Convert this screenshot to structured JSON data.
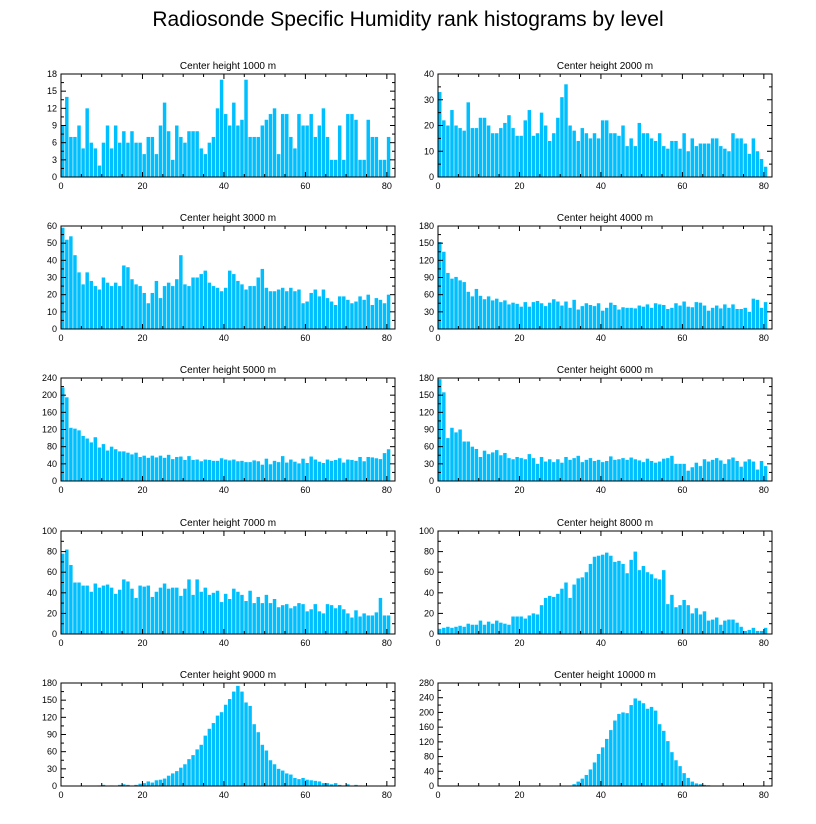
{
  "title": "Radiosonde Specific Humidity rank histograms by level",
  "bar_color": "#00bfff",
  "chart_data": [
    {
      "type": "bar",
      "title": "Center height 1000 m",
      "xlim": [
        0,
        82
      ],
      "ylim": [
        0,
        18
      ],
      "xticks": [
        0,
        20,
        40,
        60,
        80
      ],
      "yticks": [
        0,
        3,
        6,
        9,
        12,
        15,
        18
      ],
      "values": [
        9,
        14,
        7,
        7,
        9,
        5,
        12,
        6,
        5,
        2,
        6,
        9,
        5,
        9,
        6,
        8,
        6,
        8,
        6,
        6,
        4,
        7,
        7,
        4,
        9,
        13,
        8,
        3,
        9,
        7,
        6,
        8,
        8,
        8,
        5,
        4,
        6,
        7,
        12,
        17,
        11,
        9,
        13,
        9,
        10,
        17,
        7,
        7,
        7,
        9,
        10,
        11,
        12,
        4,
        11,
        11,
        7,
        5,
        11,
        9,
        9,
        11,
        7,
        9,
        12,
        7,
        3,
        3,
        9,
        3,
        11,
        11,
        10,
        3,
        3,
        10,
        7,
        7,
        3,
        3,
        7
      ]
    },
    {
      "type": "bar",
      "title": "Center height 2000 m",
      "xlim": [
        0,
        82
      ],
      "ylim": [
        0,
        40
      ],
      "xticks": [
        0,
        20,
        40,
        60,
        80
      ],
      "yticks": [
        0,
        10,
        20,
        30,
        40
      ],
      "values": [
        33,
        22,
        20,
        26,
        20,
        19,
        18,
        29,
        19,
        19,
        23,
        23,
        20,
        17,
        17,
        19,
        21,
        24,
        19,
        16,
        16,
        22,
        26,
        16,
        17,
        25,
        20,
        14,
        17,
        23,
        31,
        36,
        20,
        18,
        14,
        19,
        17,
        15,
        17,
        15,
        22,
        22,
        17,
        17,
        16,
        20,
        12,
        15,
        12,
        21,
        17,
        17,
        15,
        14,
        17,
        12,
        11,
        14,
        14,
        11,
        17,
        10,
        15,
        12,
        13,
        13,
        13,
        15,
        15,
        12,
        11,
        10,
        17,
        15,
        15,
        13,
        9,
        15,
        10,
        7,
        4
      ]
    },
    {
      "type": "bar",
      "title": "Center height 3000 m",
      "xlim": [
        0,
        82
      ],
      "ylim": [
        0,
        60
      ],
      "xticks": [
        0,
        20,
        40,
        60,
        80
      ],
      "yticks": [
        0,
        10,
        20,
        30,
        40,
        50,
        60
      ],
      "values": [
        59,
        52,
        54,
        43,
        33,
        26,
        33,
        28,
        25,
        23,
        30,
        27,
        25,
        27,
        25,
        37,
        36,
        29,
        26,
        25,
        21,
        15,
        21,
        28,
        18,
        25,
        27,
        25,
        29,
        43,
        26,
        25,
        30,
        30,
        32,
        34,
        27,
        25,
        24,
        22,
        24,
        34,
        32,
        28,
        26,
        23,
        25,
        25,
        30,
        35,
        24,
        22,
        22,
        23,
        24,
        22,
        24,
        22,
        23,
        15,
        16,
        21,
        23,
        19,
        23,
        18,
        16,
        14,
        19,
        19,
        17,
        15,
        16,
        19,
        17,
        20,
        14,
        18,
        17,
        15,
        20
      ]
    },
    {
      "type": "bar",
      "title": "Center height 4000 m",
      "xlim": [
        0,
        82
      ],
      "ylim": [
        0,
        180
      ],
      "xticks": [
        0,
        20,
        40,
        60,
        80
      ],
      "yticks": [
        0,
        30,
        60,
        90,
        120,
        150,
        180
      ],
      "values": [
        152,
        135,
        98,
        88,
        91,
        85,
        82,
        65,
        57,
        70,
        58,
        52,
        57,
        50,
        53,
        47,
        50,
        43,
        46,
        44,
        39,
        47,
        39,
        47,
        49,
        45,
        40,
        46,
        52,
        48,
        41,
        48,
        37,
        51,
        34,
        40,
        45,
        42,
        40,
        45,
        32,
        37,
        46,
        42,
        34,
        38,
        37,
        37,
        36,
        41,
        39,
        43,
        37,
        45,
        43,
        42,
        35,
        37,
        45,
        41,
        48,
        39,
        38,
        47,
        46,
        41,
        32,
        37,
        41,
        36,
        43,
        37,
        43,
        35,
        35,
        37,
        30,
        53,
        51,
        37,
        47
      ]
    },
    {
      "type": "bar",
      "title": "Center height 5000 m",
      "xlim": [
        0,
        82
      ],
      "ylim": [
        0,
        240
      ],
      "xticks": [
        0,
        20,
        40,
        60,
        80
      ],
      "yticks": [
        0,
        40,
        80,
        120,
        160,
        200,
        240
      ],
      "values": [
        218,
        195,
        124,
        122,
        118,
        105,
        99,
        90,
        102,
        78,
        86,
        71,
        80,
        74,
        69,
        69,
        66,
        62,
        66,
        56,
        59,
        54,
        59,
        55,
        59,
        54,
        61,
        51,
        56,
        57,
        49,
        58,
        49,
        50,
        46,
        50,
        49,
        47,
        47,
        53,
        50,
        48,
        50,
        46,
        47,
        44,
        44,
        48,
        46,
        38,
        52,
        39,
        47,
        44,
        58,
        43,
        50,
        45,
        41,
        52,
        42,
        57,
        50,
        45,
        42,
        50,
        47,
        49,
        53,
        43,
        50,
        49,
        47,
        56,
        46,
        56,
        55,
        53,
        51,
        65,
        74
      ]
    },
    {
      "type": "bar",
      "title": "Center height 6000 m",
      "xlim": [
        0,
        82
      ],
      "ylim": [
        0,
        180
      ],
      "xticks": [
        0,
        20,
        40,
        60,
        80
      ],
      "yticks": [
        0,
        30,
        60,
        90,
        120,
        150,
        180
      ],
      "values": [
        178,
        155,
        75,
        93,
        85,
        90,
        69,
        69,
        60,
        56,
        42,
        53,
        47,
        50,
        54,
        45,
        49,
        40,
        38,
        42,
        40,
        38,
        47,
        40,
        30,
        42,
        34,
        38,
        33,
        38,
        32,
        42,
        37,
        40,
        44,
        33,
        37,
        40,
        35,
        37,
        33,
        35,
        43,
        37,
        38,
        40,
        37,
        41,
        38,
        36,
        33,
        39,
        35,
        32,
        34,
        39,
        40,
        44,
        30,
        30,
        30,
        18,
        24,
        32,
        26,
        38,
        34,
        37,
        40,
        36,
        30,
        38,
        41,
        35,
        25,
        34,
        38,
        34,
        20,
        35,
        26
      ]
    },
    {
      "type": "bar",
      "title": "Center height 7000 m",
      "xlim": [
        0,
        82
      ],
      "ylim": [
        0,
        100
      ],
      "xticks": [
        0,
        20,
        40,
        60,
        80
      ],
      "yticks": [
        0,
        20,
        40,
        60,
        80,
        100
      ],
      "values": [
        78,
        82,
        67,
        50,
        50,
        47,
        47,
        41,
        49,
        45,
        47,
        48,
        45,
        39,
        43,
        53,
        51,
        44,
        35,
        47,
        46,
        47,
        36,
        41,
        45,
        49,
        44,
        45,
        45,
        37,
        44,
        53,
        38,
        53,
        41,
        45,
        38,
        40,
        42,
        31,
        39,
        34,
        44,
        41,
        38,
        32,
        42,
        30,
        36,
        30,
        38,
        30,
        34,
        26,
        28,
        29,
        25,
        27,
        30,
        29,
        22,
        24,
        29,
        22,
        20,
        29,
        28,
        25,
        28,
        24,
        20,
        16,
        23,
        17,
        20,
        18,
        18,
        21,
        35,
        18,
        18
      ]
    },
    {
      "type": "bar",
      "title": "Center height 8000 m",
      "xlim": [
        0,
        82
      ],
      "ylim": [
        0,
        100
      ],
      "xticks": [
        0,
        20,
        40,
        60,
        80
      ],
      "yticks": [
        0,
        20,
        40,
        60,
        80,
        100
      ],
      "values": [
        5,
        6,
        7,
        6,
        7,
        8,
        7,
        10,
        9,
        9,
        13,
        9,
        12,
        10,
        13,
        11,
        10,
        9,
        17,
        17,
        17,
        15,
        18,
        20,
        19,
        28,
        35,
        37,
        36,
        39,
        44,
        50,
        35,
        48,
        54,
        55,
        60,
        68,
        75,
        76,
        77,
        79,
        76,
        70,
        71,
        68,
        59,
        72,
        80,
        62,
        66,
        60,
        58,
        54,
        53,
        62,
        29,
        38,
        26,
        28,
        33,
        28,
        20,
        25,
        19,
        22,
        13,
        14,
        16,
        9,
        13,
        14,
        14,
        11,
        7,
        3,
        4,
        6,
        3,
        3,
        6
      ]
    },
    {
      "type": "bar",
      "title": "Center height 9000 m",
      "xlim": [
        0,
        82
      ],
      "ylim": [
        0,
        180
      ],
      "xticks": [
        0,
        20,
        40,
        60,
        80
      ],
      "yticks": [
        0,
        30,
        60,
        90,
        120,
        150,
        180
      ],
      "values": [
        0,
        0,
        0,
        0,
        0,
        0,
        0,
        0,
        0,
        1,
        2,
        0,
        1,
        0,
        2,
        3,
        2,
        0,
        2,
        4,
        5,
        8,
        6,
        10,
        11,
        13,
        18,
        22,
        26,
        32,
        38,
        47,
        54,
        64,
        72,
        88,
        100,
        110,
        123,
        129,
        142,
        152,
        165,
        175,
        165,
        146,
        140,
        108,
        94,
        72,
        62,
        45,
        38,
        30,
        27,
        22,
        20,
        14,
        12,
        14,
        11,
        10,
        9,
        8,
        5,
        5,
        3,
        5,
        2,
        1,
        3,
        0,
        2,
        1,
        0,
        0,
        0,
        0,
        0,
        0,
        0
      ]
    },
    {
      "type": "bar",
      "title": "Center height 10000 m",
      "xlim": [
        0,
        82
      ],
      "ylim": [
        0,
        280
      ],
      "xticks": [
        0,
        20,
        40,
        60,
        80
      ],
      "yticks": [
        0,
        40,
        80,
        120,
        160,
        200,
        240,
        280
      ],
      "values": [
        0,
        0,
        0,
        0,
        0,
        0,
        0,
        0,
        0,
        0,
        0,
        0,
        0,
        0,
        0,
        0,
        0,
        0,
        0,
        0,
        0,
        0,
        0,
        0,
        0,
        0,
        0,
        0,
        0,
        0,
        0,
        0,
        0,
        5,
        12,
        20,
        30,
        45,
        64,
        87,
        105,
        128,
        152,
        178,
        196,
        200,
        198,
        220,
        238,
        232,
        225,
        210,
        215,
        205,
        168,
        150,
        122,
        92,
        70,
        54,
        35,
        22,
        12,
        7,
        5,
        3,
        2,
        1,
        1,
        0,
        0,
        0,
        0,
        0,
        0,
        0,
        0,
        0,
        0,
        0,
        0
      ]
    }
  ]
}
